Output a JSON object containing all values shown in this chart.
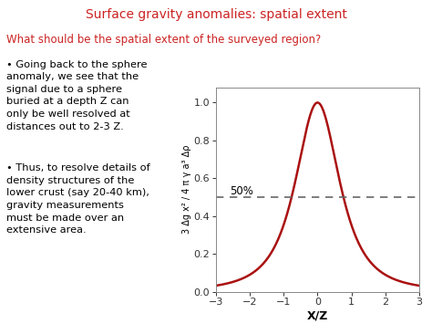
{
  "title": "Surface gravity anomalies: spatial extent",
  "title_color": "#CC2222",
  "subtitle": "What should be the spatial extent of the surveyed region?",
  "subtitle_color": "#CC2222",
  "bullet1_line1": "• Going back to the sphere",
  "bullet1_line2": "anomaly, we see that the",
  "bullet1_line3": "signal due to a sphere",
  "bullet1_line4": "buried at a depth Z can",
  "bullet1_line5": "only be well resolved at",
  "bullet1_line6": "distances out to 2-3 Z.",
  "bullet2_line1": "• Thus, to resolve details of",
  "bullet2_line2": "density structures of the",
  "bullet2_line3": "lower crust (say 20-40 km),",
  "bullet2_line4": "gravity measurements",
  "bullet2_line5": "must be made over an",
  "bullet2_line6": "extensive area.",
  "plot_xlabel": "X/Z",
  "plot_ylabel": "3 Δg x² / 4 π γ a³ Δρ",
  "plot_xlim": [
    -3,
    3
  ],
  "plot_ylim": [
    0.0,
    1.08
  ],
  "plot_yticks": [
    0.0,
    0.2,
    0.4,
    0.6,
    0.8,
    1.0
  ],
  "plot_xticks": [
    -3,
    -2,
    -1,
    0,
    1,
    2,
    3
  ],
  "curve_color": "#AA1111",
  "dashed_line_y": 0.5,
  "dashed_line_color": "#666666",
  "label_50pct": "50%",
  "background_color": "#ffffff",
  "text_color": "#000000",
  "figsize": [
    4.74,
    3.55
  ],
  "dpi": 100
}
